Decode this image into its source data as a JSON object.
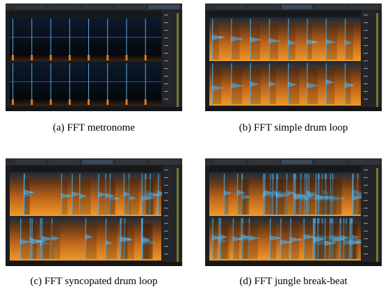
{
  "figures": [
    {
      "caption": "(a) FFT metronome"
    },
    {
      "caption": "(b) FFT simple drum loop"
    },
    {
      "caption": "(c) FFT syncopated drum loop"
    },
    {
      "caption": "(d) FFT jungle break-beat"
    }
  ]
}
